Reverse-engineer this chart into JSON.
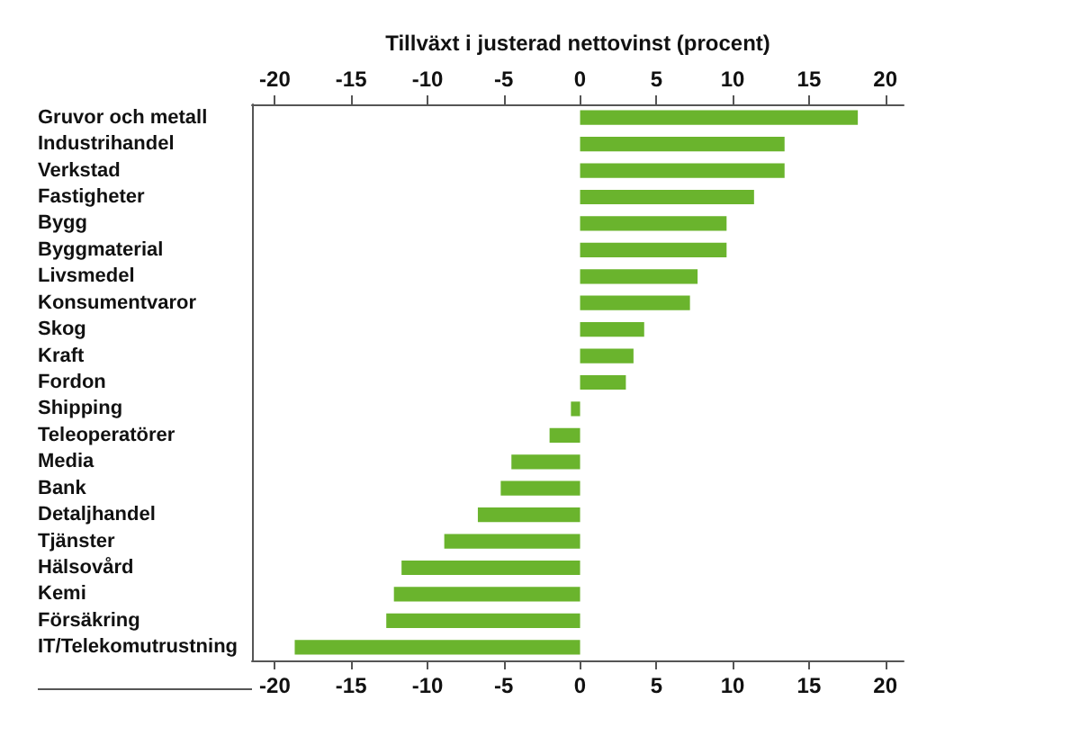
{
  "chart_data": {
    "type": "bar",
    "orientation": "horizontal",
    "x2label": "Tillväxt i justerad nettovinst (procent)",
    "categories": [
      "Gruvor och metall",
      "Industrihandel",
      "Verkstad",
      "Fastigheter",
      "Bygg",
      "Byggmaterial",
      "Livsmedel",
      "Konsumentvaror",
      "Skog",
      "Kraft",
      "Fordon",
      "Shipping",
      "Teleoperatörer",
      "Media",
      "Bank",
      "Detaljhandel",
      "Tjänster",
      "Hälsovård",
      "Kemi",
      "Försäkring",
      "IT/Telekomutrustning"
    ],
    "values": [
      18.2,
      13.4,
      13.4,
      11.4,
      9.6,
      9.6,
      7.7,
      7.2,
      4.2,
      3.5,
      3.0,
      -0.6,
      -2.0,
      -4.5,
      -5.2,
      -6.7,
      -8.9,
      -11.7,
      -12.2,
      -12.7,
      -18.7
    ],
    "color": "#6ab42d",
    "xlim": [
      -21.5,
      21.2
    ],
    "xticks": [
      -20,
      -15,
      -10,
      -5,
      0,
      5,
      10,
      15,
      20
    ],
    "x2lim": [
      -21.5,
      21.2
    ],
    "x2ticks": [
      -20,
      -15,
      -10,
      -5,
      0,
      5,
      10,
      15,
      20
    ],
    "grid": false
  }
}
